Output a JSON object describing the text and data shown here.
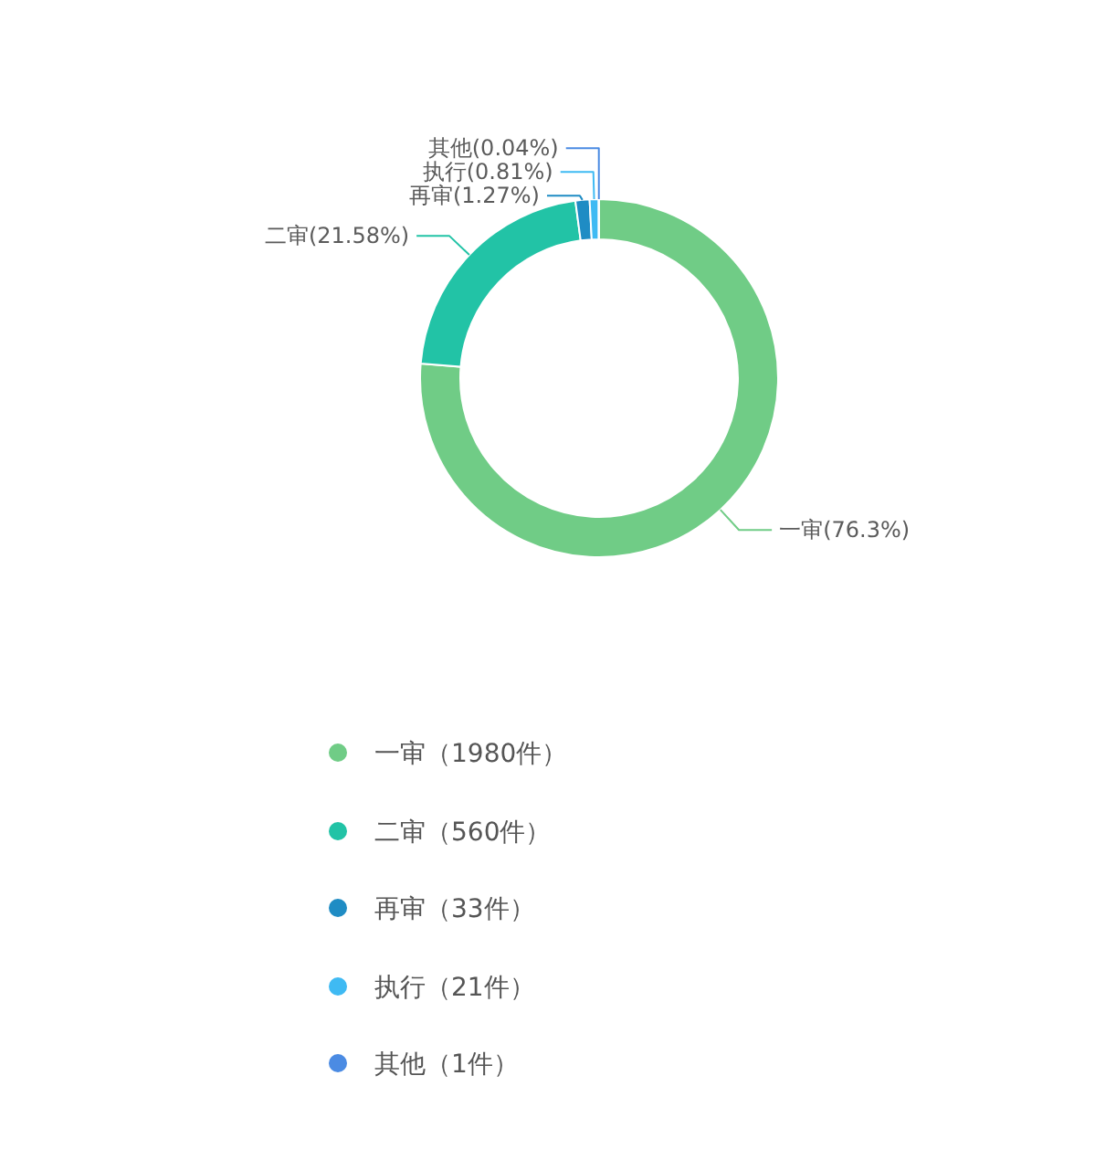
{
  "chart_data": {
    "type": "donut",
    "categories": [
      "一审（1980件）",
      "二审（560件）",
      "再审（33件）",
      "执行（21件）",
      "其他（1件）"
    ],
    "values": [
      1980,
      560,
      33,
      21,
      1
    ],
    "colors": [
      "#70cc86",
      "#22c3a6",
      "#1f8cc4",
      "#3fbaf3",
      "#4b8be3"
    ],
    "value_labels": [
      "一审(76.3%)",
      "二审(21.58%)",
      "再审(1.27%)",
      "执行(0.81%)",
      "其他(0.04%)"
    ],
    "legend": "bottom"
  }
}
